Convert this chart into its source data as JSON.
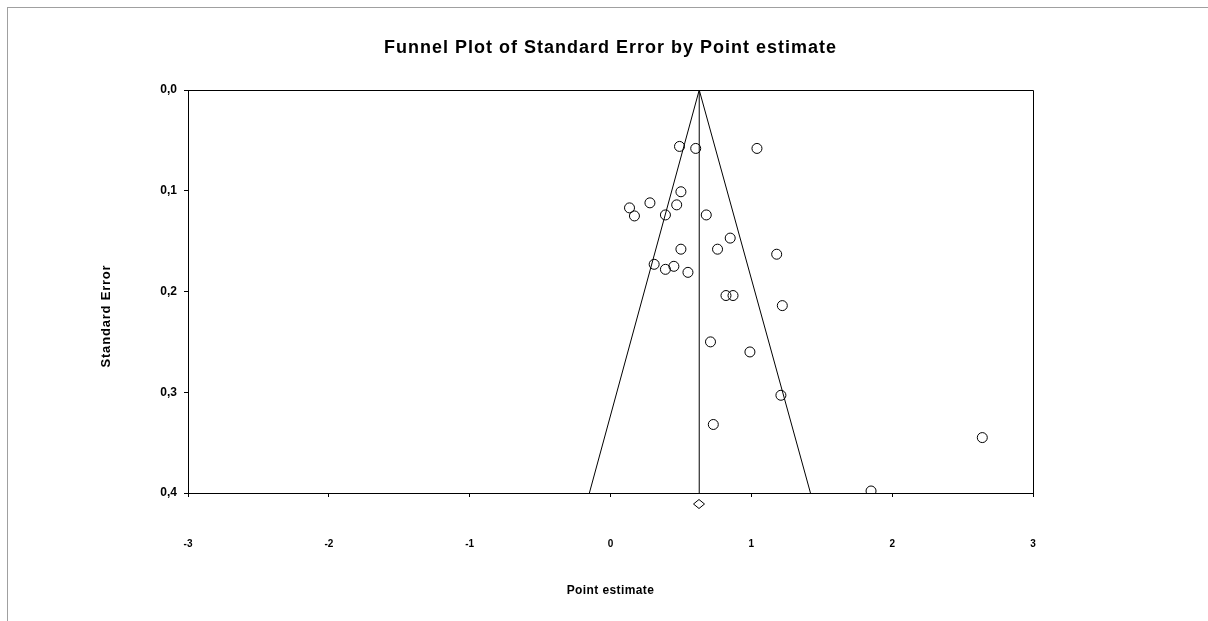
{
  "chart_data": {
    "type": "scatter",
    "title": "Funnel Plot of Standard Error by Point estimate",
    "xlabel": "Point estimate",
    "ylabel": "Standard Error",
    "xlim": [
      -3,
      3
    ],
    "xticks": [
      -3,
      -2,
      -1,
      0,
      1,
      2,
      3
    ],
    "ylim": [
      0.4,
      0
    ],
    "yticks": [
      {
        "value": 0,
        "label": "0,0"
      },
      {
        "value": 0.1,
        "label": "0,1"
      },
      {
        "value": 0.2,
        "label": "0,2"
      },
      {
        "value": 0.3,
        "label": "0,3"
      },
      {
        "value": 0.4,
        "label": "0,4"
      }
    ],
    "grid": false,
    "legend": false,
    "marker": "circle",
    "series": [
      {
        "type": "scatter",
        "color": "#000000",
        "x": [
          0.49,
          0.605,
          1.04,
          0.5,
          0.28,
          0.135,
          0.47,
          0.17,
          0.39,
          0.68,
          0.85,
          0.5,
          0.76,
          1.18,
          0.31,
          0.39,
          0.45,
          0.55,
          0.82,
          0.87,
          1.22,
          0.71,
          0.99,
          1.21,
          0.73,
          2.64,
          1.85
        ],
        "values": [
          0.056,
          0.058,
          0.058,
          0.101,
          0.112,
          0.117,
          0.114,
          0.125,
          0.124,
          0.124,
          0.147,
          0.158,
          0.158,
          0.163,
          0.173,
          0.178,
          0.175,
          0.181,
          0.204,
          0.204,
          0.214,
          0.25,
          0.26,
          0.303,
          0.332,
          0.345,
          0.398
        ]
      },
      {
        "type": "line",
        "color": "#000000",
        "marker": "none",
        "x": [
          -0.15,
          0.63,
          1.42
        ],
        "values": [
          0.4,
          0,
          0.4
        ]
      }
    ],
    "ref_lines": [
      {
        "axis": "x",
        "value": 0.63,
        "color": "#000000"
      }
    ]
  }
}
